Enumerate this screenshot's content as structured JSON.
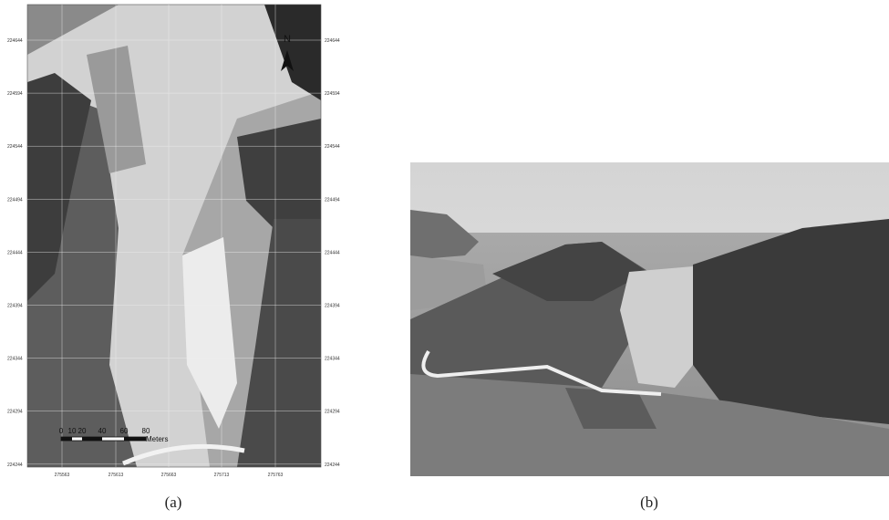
{
  "panels": [
    {
      "label": "(a)",
      "north_arrow": "N",
      "scale_bar": {
        "ticks": [
          "0",
          "10",
          "20",
          "40",
          "60",
          "80"
        ],
        "unit": "Meters"
      },
      "eastings": [
        "275563",
        "275613",
        "275663",
        "275713",
        "275763"
      ],
      "northings": [
        "224644",
        "224594",
        "224544",
        "224494",
        "224444",
        "224394",
        "224344",
        "224294",
        "224244"
      ]
    },
    {
      "label": "(b)"
    }
  ]
}
